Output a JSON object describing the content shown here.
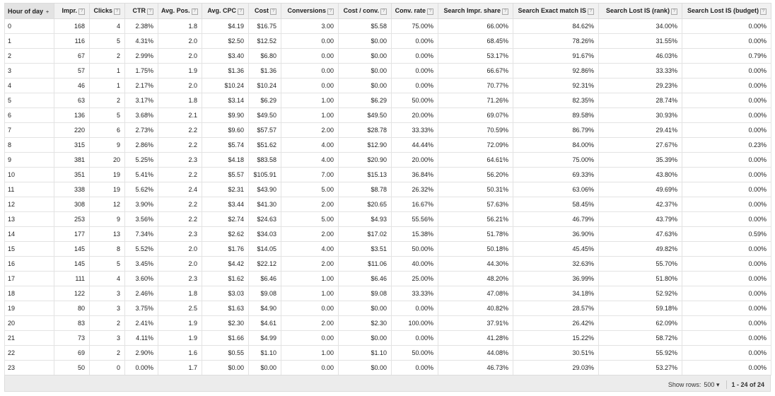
{
  "columns": [
    {
      "label": "Hour of day",
      "help": "",
      "sort": "+"
    },
    {
      "label": "Impr.",
      "help": "?"
    },
    {
      "label": "Clicks",
      "help": "?"
    },
    {
      "label": "CTR",
      "help": "?"
    },
    {
      "label": "Avg. Pos.",
      "help": "?"
    },
    {
      "label": "Avg. CPC",
      "help": "?"
    },
    {
      "label": "Cost",
      "help": "?"
    },
    {
      "label": "Conversions",
      "help": "?"
    },
    {
      "label": "Cost / conv.",
      "help": "?"
    },
    {
      "label": "Conv. rate",
      "help": "?"
    },
    {
      "label": "Search Impr. share",
      "help": "?"
    },
    {
      "label": "Search Exact match IS",
      "help": "?"
    },
    {
      "label": "Search Lost IS (rank)",
      "help": "?"
    },
    {
      "label": "Search Lost IS (budget)",
      "help": "?"
    }
  ],
  "rows": [
    [
      "0",
      "168",
      "4",
      "2.38%",
      "1.8",
      "$4.19",
      "$16.75",
      "3.00",
      "$5.58",
      "75.00%",
      "66.00%",
      "84.62%",
      "34.00%",
      "0.00%"
    ],
    [
      "1",
      "116",
      "5",
      "4.31%",
      "2.0",
      "$2.50",
      "$12.52",
      "0.00",
      "$0.00",
      "0.00%",
      "68.45%",
      "78.26%",
      "31.55%",
      "0.00%"
    ],
    [
      "2",
      "67",
      "2",
      "2.99%",
      "2.0",
      "$3.40",
      "$6.80",
      "0.00",
      "$0.00",
      "0.00%",
      "53.17%",
      "91.67%",
      "46.03%",
      "0.79%"
    ],
    [
      "3",
      "57",
      "1",
      "1.75%",
      "1.9",
      "$1.36",
      "$1.36",
      "0.00",
      "$0.00",
      "0.00%",
      "66.67%",
      "92.86%",
      "33.33%",
      "0.00%"
    ],
    [
      "4",
      "46",
      "1",
      "2.17%",
      "2.0",
      "$10.24",
      "$10.24",
      "0.00",
      "$0.00",
      "0.00%",
      "70.77%",
      "92.31%",
      "29.23%",
      "0.00%"
    ],
    [
      "5",
      "63",
      "2",
      "3.17%",
      "1.8",
      "$3.14",
      "$6.29",
      "1.00",
      "$6.29",
      "50.00%",
      "71.26%",
      "82.35%",
      "28.74%",
      "0.00%"
    ],
    [
      "6",
      "136",
      "5",
      "3.68%",
      "2.1",
      "$9.90",
      "$49.50",
      "1.00",
      "$49.50",
      "20.00%",
      "69.07%",
      "89.58%",
      "30.93%",
      "0.00%"
    ],
    [
      "7",
      "220",
      "6",
      "2.73%",
      "2.2",
      "$9.60",
      "$57.57",
      "2.00",
      "$28.78",
      "33.33%",
      "70.59%",
      "86.79%",
      "29.41%",
      "0.00%"
    ],
    [
      "8",
      "315",
      "9",
      "2.86%",
      "2.2",
      "$5.74",
      "$51.62",
      "4.00",
      "$12.90",
      "44.44%",
      "72.09%",
      "84.00%",
      "27.67%",
      "0.23%"
    ],
    [
      "9",
      "381",
      "20",
      "5.25%",
      "2.3",
      "$4.18",
      "$83.58",
      "4.00",
      "$20.90",
      "20.00%",
      "64.61%",
      "75.00%",
      "35.39%",
      "0.00%"
    ],
    [
      "10",
      "351",
      "19",
      "5.41%",
      "2.2",
      "$5.57",
      "$105.91",
      "7.00",
      "$15.13",
      "36.84%",
      "56.20%",
      "69.33%",
      "43.80%",
      "0.00%"
    ],
    [
      "11",
      "338",
      "19",
      "5.62%",
      "2.4",
      "$2.31",
      "$43.90",
      "5.00",
      "$8.78",
      "26.32%",
      "50.31%",
      "63.06%",
      "49.69%",
      "0.00%"
    ],
    [
      "12",
      "308",
      "12",
      "3.90%",
      "2.2",
      "$3.44",
      "$41.30",
      "2.00",
      "$20.65",
      "16.67%",
      "57.63%",
      "58.45%",
      "42.37%",
      "0.00%"
    ],
    [
      "13",
      "253",
      "9",
      "3.56%",
      "2.2",
      "$2.74",
      "$24.63",
      "5.00",
      "$4.93",
      "55.56%",
      "56.21%",
      "46.79%",
      "43.79%",
      "0.00%"
    ],
    [
      "14",
      "177",
      "13",
      "7.34%",
      "2.3",
      "$2.62",
      "$34.03",
      "2.00",
      "$17.02",
      "15.38%",
      "51.78%",
      "36.90%",
      "47.63%",
      "0.59%"
    ],
    [
      "15",
      "145",
      "8",
      "5.52%",
      "2.0",
      "$1.76",
      "$14.05",
      "4.00",
      "$3.51",
      "50.00%",
      "50.18%",
      "45.45%",
      "49.82%",
      "0.00%"
    ],
    [
      "16",
      "145",
      "5",
      "3.45%",
      "2.0",
      "$4.42",
      "$22.12",
      "2.00",
      "$11.06",
      "40.00%",
      "44.30%",
      "32.63%",
      "55.70%",
      "0.00%"
    ],
    [
      "17",
      "111",
      "4",
      "3.60%",
      "2.3",
      "$1.62",
      "$6.46",
      "1.00",
      "$6.46",
      "25.00%",
      "48.20%",
      "36.99%",
      "51.80%",
      "0.00%"
    ],
    [
      "18",
      "122",
      "3",
      "2.46%",
      "1.8",
      "$3.03",
      "$9.08",
      "1.00",
      "$9.08",
      "33.33%",
      "47.08%",
      "34.18%",
      "52.92%",
      "0.00%"
    ],
    [
      "19",
      "80",
      "3",
      "3.75%",
      "2.5",
      "$1.63",
      "$4.90",
      "0.00",
      "$0.00",
      "0.00%",
      "40.82%",
      "28.57%",
      "59.18%",
      "0.00%"
    ],
    [
      "20",
      "83",
      "2",
      "2.41%",
      "1.9",
      "$2.30",
      "$4.61",
      "2.00",
      "$2.30",
      "100.00%",
      "37.91%",
      "26.42%",
      "62.09%",
      "0.00%"
    ],
    [
      "21",
      "73",
      "3",
      "4.11%",
      "1.9",
      "$1.66",
      "$4.99",
      "0.00",
      "$0.00",
      "0.00%",
      "41.28%",
      "15.22%",
      "58.72%",
      "0.00%"
    ],
    [
      "22",
      "69",
      "2",
      "2.90%",
      "1.6",
      "$0.55",
      "$1.10",
      "1.00",
      "$1.10",
      "50.00%",
      "44.08%",
      "30.51%",
      "55.92%",
      "0.00%"
    ],
    [
      "23",
      "50",
      "0",
      "0.00%",
      "1.7",
      "$0.00",
      "$0.00",
      "0.00",
      "$0.00",
      "0.00%",
      "46.73%",
      "29.03%",
      "53.27%",
      "0.00%"
    ]
  ],
  "footer": {
    "show_rows_label": "Show rows:",
    "rows_value": "500",
    "dropdown_icon": "▾",
    "range": "1 - 24 of 24"
  }
}
